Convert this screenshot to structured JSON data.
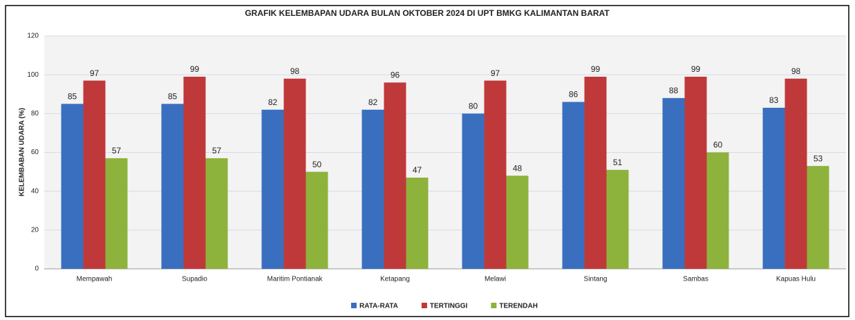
{
  "chart_data": {
    "type": "bar",
    "title": "GRAFIK KELEMBAPAN UDARA BULAN OKTOBER 2024 DI UPT BMKG KALIMANTAN BARAT",
    "y_label": "KELEMBABAN UDARA (%)",
    "categories": [
      "Mempawah",
      "Supadio",
      "Maritim Pontianak",
      "Ketapang",
      "Melawi",
      "Sintang",
      "Sambas",
      "Kapuas Hulu"
    ],
    "series": [
      {
        "name": "RATA-RATA",
        "color": "#3a6fc0",
        "values": [
          85,
          85,
          82,
          82,
          80,
          86,
          88,
          83
        ]
      },
      {
        "name": "TERTINGGI",
        "color": "#c0393a",
        "values": [
          97,
          99,
          98,
          96,
          97,
          99,
          99,
          98
        ]
      },
      {
        "name": "TERENDAH",
        "color": "#8db33c",
        "values": [
          57,
          57,
          50,
          47,
          48,
          51,
          60,
          53
        ]
      }
    ],
    "ylim": [
      0,
      120
    ],
    "yticks": [
      0,
      20,
      40,
      60,
      80,
      100,
      120
    ],
    "grid": true,
    "legend": "bottom"
  }
}
